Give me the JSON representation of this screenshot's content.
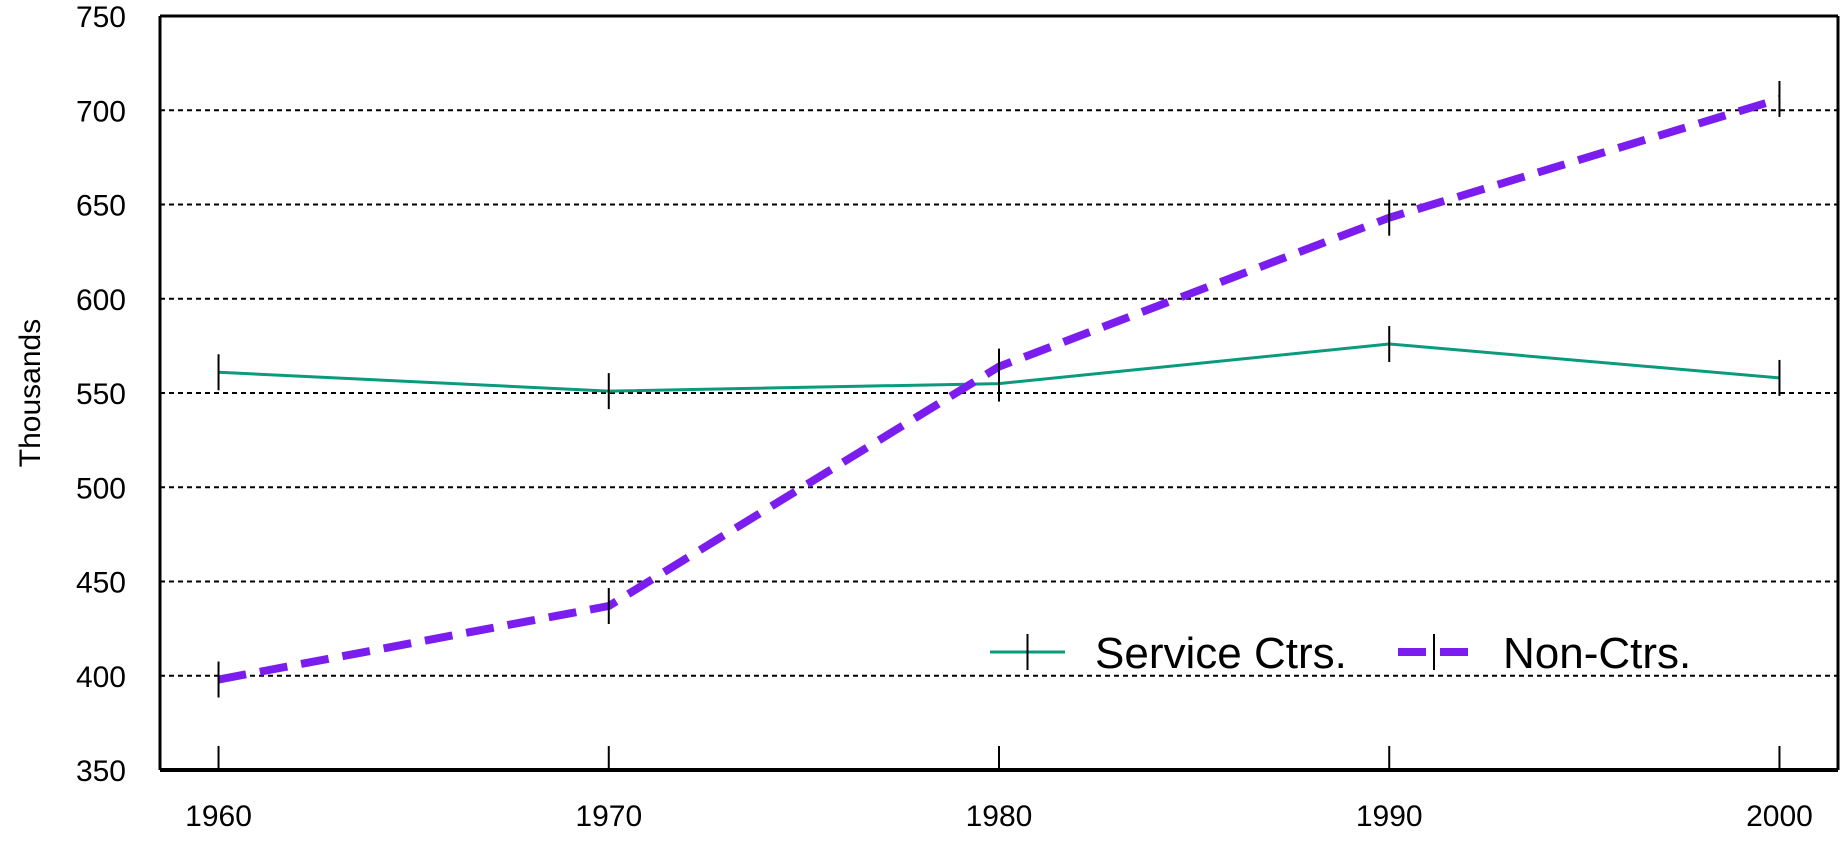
{
  "chart_data": {
    "type": "line",
    "title": "",
    "xlabel": "",
    "ylabel": "Thousands",
    "x": [
      1960,
      1970,
      1980,
      1990,
      2000
    ],
    "x_tick_labels": [
      "1960",
      "1970",
      "1980",
      "1990",
      "2000"
    ],
    "y_tick_labels": [
      "350",
      "400",
      "450",
      "500",
      "550",
      "600",
      "650",
      "700",
      "750"
    ],
    "ylim": [
      350,
      750
    ],
    "xlim": [
      1958.5,
      2001.5
    ],
    "grid": "horizontal dashed",
    "legend_position": "bottom-right",
    "series": [
      {
        "name": "Service Ctrs.",
        "color": "#0a9a7c",
        "style": "solid",
        "values": [
          561,
          551,
          555,
          576,
          558
        ]
      },
      {
        "name": "Non-Ctrs.",
        "color": "#7c1df0",
        "style": "dashed",
        "values": [
          398,
          437,
          564,
          643,
          706
        ]
      }
    ]
  }
}
